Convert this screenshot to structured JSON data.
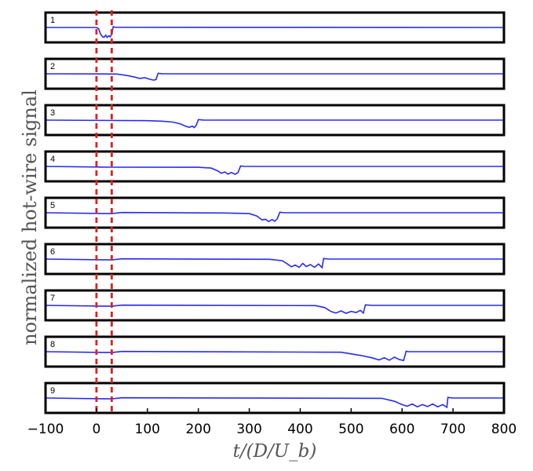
{
  "chart_data": {
    "type": "line",
    "title": "",
    "xlabel": "t/(D/U_b)",
    "ylabel": "normalized hot-wire signal",
    "xlim": [
      -100,
      800
    ],
    "xticks": [
      -100,
      0,
      100,
      200,
      300,
      400,
      500,
      600,
      700,
      800
    ],
    "xtick_labels": [
      "−100",
      "0",
      "100",
      "200",
      "300",
      "400",
      "500",
      "600",
      "700",
      "800"
    ],
    "markers": [
      0,
      30
    ],
    "colors": {
      "trace": "#2a2af0",
      "marker": "#e02020",
      "frame": "#000000"
    },
    "series": [
      {
        "label": "1",
        "x": [
          -100,
          0,
          4,
          8,
          12,
          15,
          18,
          21,
          24,
          27,
          30,
          33,
          36,
          800
        ],
        "y": [
          0,
          0,
          -0.1,
          -0.6,
          -0.85,
          -0.9,
          -0.7,
          -0.9,
          -0.75,
          -0.85,
          -0.6,
          0.08,
          0.02,
          0
        ]
      },
      {
        "label": "2",
        "x": [
          -100,
          40,
          55,
          65,
          75,
          85,
          95,
          105,
          112,
          117,
          121,
          130,
          800
        ],
        "y": [
          0,
          -0.02,
          -0.12,
          -0.2,
          -0.3,
          -0.42,
          -0.36,
          -0.5,
          -0.58,
          -0.52,
          0.04,
          0,
          0
        ]
      },
      {
        "label": "3",
        "x": [
          -100,
          100,
          130,
          150,
          165,
          175,
          182,
          188,
          192,
          196,
          200,
          210,
          800
        ],
        "y": [
          0,
          -0.05,
          -0.1,
          -0.18,
          -0.35,
          -0.55,
          -0.65,
          -0.55,
          -0.68,
          -0.45,
          0.05,
          0,
          0
        ]
      },
      {
        "label": "4",
        "x": [
          -100,
          30,
          200,
          225,
          238,
          245,
          252,
          258,
          265,
          272,
          278,
          283,
          290,
          800
        ],
        "y": [
          0,
          -0.07,
          -0.08,
          -0.15,
          -0.4,
          -0.62,
          -0.5,
          -0.7,
          -0.55,
          -0.72,
          -0.55,
          0.04,
          0,
          0
        ]
      },
      {
        "label": "5",
        "x": [
          -100,
          30,
          50,
          250,
          300,
          315,
          325,
          332,
          338,
          345,
          350,
          355,
          360,
          370,
          800
        ],
        "y": [
          0,
          -0.08,
          0.02,
          -0.02,
          -0.08,
          -0.3,
          -0.65,
          -0.6,
          -0.8,
          -0.62,
          -0.78,
          -0.55,
          0.04,
          0,
          0
        ]
      },
      {
        "label": "6",
        "x": [
          -100,
          30,
          50,
          340,
          365,
          375,
          383,
          390,
          398,
          405,
          412,
          420,
          428,
          436,
          443,
          446,
          455,
          800
        ],
        "y": [
          0,
          -0.08,
          0.02,
          -0.02,
          -0.15,
          -0.45,
          -0.7,
          -0.55,
          -0.75,
          -0.4,
          -0.68,
          -0.5,
          -0.75,
          -0.45,
          -0.78,
          0.05,
          0,
          0
        ]
      },
      {
        "label": "7",
        "x": [
          -100,
          30,
          50,
          430,
          448,
          460,
          470,
          480,
          490,
          500,
          510,
          518,
          524,
          528,
          540,
          800
        ],
        "y": [
          0,
          -0.08,
          0.02,
          -0.02,
          -0.2,
          -0.55,
          -0.7,
          -0.5,
          -0.72,
          -0.55,
          -0.65,
          -0.45,
          -0.7,
          0.05,
          0,
          0
        ]
      },
      {
        "label": "8",
        "x": [
          -100,
          30,
          50,
          480,
          520,
          540,
          555,
          565,
          575,
          585,
          595,
          603,
          608,
          612,
          620,
          800
        ],
        "y": [
          0,
          -0.08,
          0.02,
          -0.05,
          -0.35,
          -0.55,
          -0.75,
          -0.55,
          -0.78,
          -0.5,
          -0.72,
          -0.8,
          0.05,
          0,
          0,
          0
        ]
      },
      {
        "label": "9",
        "x": [
          -100,
          30,
          50,
          560,
          585,
          600,
          610,
          620,
          630,
          640,
          650,
          660,
          670,
          680,
          688,
          690,
          700,
          800
        ],
        "y": [
          0,
          -0.08,
          0.02,
          -0.03,
          -0.3,
          -0.6,
          -0.75,
          -0.55,
          -0.8,
          -0.6,
          -0.78,
          -0.55,
          -0.8,
          -0.6,
          -0.85,
          0.05,
          0,
          0
        ]
      }
    ]
  }
}
